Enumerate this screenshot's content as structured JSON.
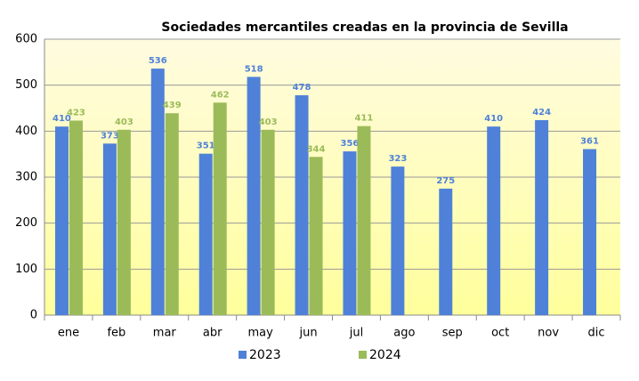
{
  "chart_data": {
    "type": "bar",
    "title": "Sociedades mercantiles creadas en la provincia de Sevilla",
    "categories": [
      "ene",
      "feb",
      "mar",
      "abr",
      "may",
      "jun",
      "jul",
      "ago",
      "sep",
      "oct",
      "nov",
      "dic"
    ],
    "series": [
      {
        "name": "2023",
        "color": "#4f81d9",
        "values": [
          410,
          373,
          536,
          351,
          518,
          478,
          356,
          323,
          275,
          410,
          424,
          361
        ]
      },
      {
        "name": "2024",
        "color": "#9bbb59",
        "values": [
          423,
          403,
          439,
          462,
          403,
          344,
          411,
          null,
          null,
          null,
          null,
          null
        ]
      }
    ],
    "ylim": [
      0,
      600
    ],
    "yticks": [
      0,
      100,
      200,
      300,
      400,
      500,
      600
    ],
    "grid": true
  }
}
